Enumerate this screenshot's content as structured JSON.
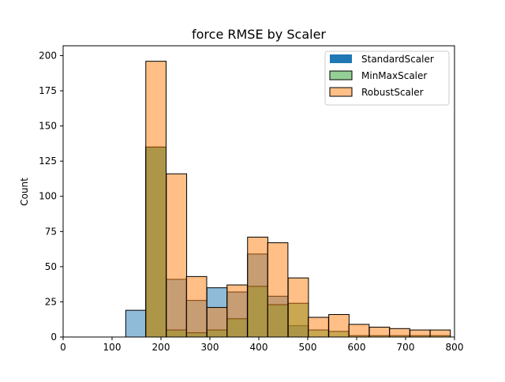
{
  "chart_data": {
    "type": "bar",
    "title": "force RMSE by Scaler",
    "xlabel": "",
    "ylabel": "Count",
    "xlim": [
      0,
      800
    ],
    "ylim": [
      0,
      207
    ],
    "xticks": [
      "0",
      "100",
      "200",
      "300",
      "400",
      "500",
      "600",
      "700",
      "800"
    ],
    "yticks": [
      "0",
      "25",
      "50",
      "75",
      "100",
      "125",
      "150",
      "175",
      "200"
    ],
    "legend_position": "top-right",
    "bin_width": 41.5,
    "series": [
      {
        "name": "StandardScaler",
        "color": "#1f77b4",
        "bin_starts": [
          128,
          169,
          211,
          252,
          294,
          335,
          377,
          418,
          460
        ],
        "values": [
          19,
          135,
          41,
          26,
          35,
          32,
          59,
          29,
          8
        ]
      },
      {
        "name": "MinMaxScaler",
        "color": "#2ca02c",
        "bin_starts": [
          169,
          211,
          252,
          294,
          335,
          377,
          418,
          460,
          501,
          543,
          584,
          626,
          667,
          709,
          750
        ],
        "values": [
          135,
          5,
          3,
          5,
          13,
          36,
          23,
          24,
          5,
          4,
          1,
          1,
          1,
          1,
          1
        ]
      },
      {
        "name": "RobustScaler",
        "color": "#ff7f0e",
        "bin_starts": [
          169,
          211,
          252,
          294,
          335,
          377,
          418,
          460,
          501,
          543,
          584,
          626,
          667,
          709,
          750
        ],
        "values": [
          196,
          116,
          43,
          21,
          37,
          71,
          67,
          42,
          14,
          16,
          9,
          7,
          6,
          5,
          5
        ]
      }
    ]
  }
}
